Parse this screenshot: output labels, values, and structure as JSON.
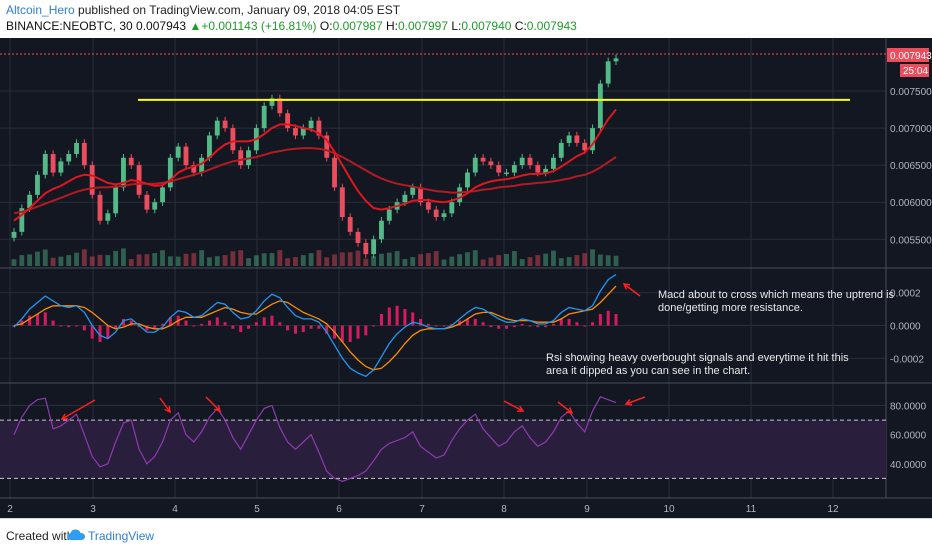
{
  "header": {
    "author": "Altcoin_Hero",
    "published": "published on TradingView.com, January 09, 2018 04:05 EST",
    "symbol": "BINANCE:NEOBTC, 30",
    "last": "0.007943",
    "change": "+0.001143 (+16.81%)",
    "open_label": "O:",
    "open": "0.007987",
    "high_label": "H:",
    "high": "0.007997",
    "low_label": "L:",
    "low": "0.007940",
    "close_label": "C:",
    "close": "0.007943"
  },
  "footer": {
    "created_with": "Created with",
    "brand": "TradingView"
  },
  "price_badge": "0.007943",
  "countdown_badge": "25:04",
  "annotations": {
    "macd_note": [
      "Macd about to cross which means the uptrend is",
      "done/getting more resistance."
    ],
    "rsi_note": [
      "Rsi showing heavy overbought signals and everytime it hit this",
      "area it dipped as you can see in the chart."
    ]
  },
  "colors": {
    "background": "#131722",
    "bull": "#53b987",
    "bear": "#eb4d5c",
    "resistance": "#ffff00",
    "ma_fast": "#e0161f",
    "ma_slow": "#b41a22",
    "macd": "#2196f3",
    "signal": "#ff8c00",
    "hist": "#d81b60",
    "rsi": "#8e3bb0",
    "rsi_band": "#2a1e3d",
    "annotation_arrow": "#ff2020"
  },
  "chart_data": {
    "type": "candlestick",
    "x_ticks": [
      "2",
      "3",
      "4",
      "5",
      "6",
      "7",
      "8",
      "9",
      "10",
      "11",
      "12"
    ],
    "price_axis": {
      "ticks": [
        "0.007500",
        "0.007000",
        "0.006500",
        "0.006000",
        "0.005500"
      ],
      "range": [
        0.00518,
        0.00808
      ]
    },
    "resistance_level": 0.00738,
    "price_close": [
      0.0056,
      0.00592,
      0.0061,
      0.00637,
      0.00665,
      0.0064,
      0.00655,
      0.00665,
      0.0068,
      0.0065,
      0.0061,
      0.00575,
      0.00585,
      0.0062,
      0.0066,
      0.0065,
      0.0061,
      0.0059,
      0.006,
      0.0062,
      0.0066,
      0.00675,
      0.0065,
      0.0064,
      0.0066,
      0.0069,
      0.0071,
      0.007,
      0.0067,
      0.0065,
      0.0067,
      0.007,
      0.0073,
      0.0074,
      0.0072,
      0.007,
      0.0069,
      0.007,
      0.0071,
      0.0069,
      0.0066,
      0.0062,
      0.0058,
      0.0056,
      0.00545,
      0.0053,
      0.0055,
      0.00575,
      0.0059,
      0.006,
      0.0061,
      0.0062,
      0.006,
      0.0059,
      0.0058,
      0.00585,
      0.006,
      0.0062,
      0.0064,
      0.0066,
      0.00655,
      0.0065,
      0.0064,
      0.0064,
      0.0065,
      0.0066,
      0.0065,
      0.0064,
      0.00645,
      0.0066,
      0.0068,
      0.0069,
      0.0068,
      0.0067,
      0.007,
      0.0076,
      0.0079,
      0.00794
    ],
    "ma_fast": [
      0.00575,
      0.00583,
      0.00592,
      0.00602,
      0.00612,
      0.00618,
      0.00622,
      0.00628,
      0.00634,
      0.00637,
      0.00636,
      0.00631,
      0.00626,
      0.00624,
      0.00626,
      0.0063,
      0.00628,
      0.00625,
      0.00622,
      0.00623,
      0.0063,
      0.0064,
      0.00645,
      0.00648,
      0.00652,
      0.0066,
      0.0067,
      0.00678,
      0.00682,
      0.00682,
      0.00682,
      0.00685,
      0.00692,
      0.007,
      0.00705,
      0.00705,
      0.00703,
      0.007,
      0.00698,
      0.00693,
      0.00684,
      0.00668,
      0.0065,
      0.00632,
      0.00615,
      0.00602,
      0.00592,
      0.0059,
      0.00592,
      0.00595,
      0.00598,
      0.00602,
      0.00603,
      0.00603,
      0.00601,
      0.006,
      0.00602,
      0.00606,
      0.00612,
      0.0062,
      0.00625,
      0.00628,
      0.0063,
      0.00631,
      0.00633,
      0.00636,
      0.00638,
      0.00638,
      0.00639,
      0.00642,
      0.00648,
      0.00655,
      0.00662,
      0.00667,
      0.00678,
      0.00695,
      0.00712,
      0.00725
    ],
    "ma_slow": [
      0.00585,
      0.00587,
      0.0059,
      0.00594,
      0.00598,
      0.00602,
      0.00606,
      0.0061,
      0.00614,
      0.00617,
      0.00619,
      0.0062,
      0.0062,
      0.00621,
      0.00622,
      0.00624,
      0.00625,
      0.00625,
      0.00625,
      0.00626,
      0.00628,
      0.00631,
      0.00634,
      0.00637,
      0.0064,
      0.00644,
      0.00648,
      0.00652,
      0.00655,
      0.00657,
      0.00659,
      0.00661,
      0.00664,
      0.00667,
      0.00669,
      0.00671,
      0.00672,
      0.00673,
      0.00673,
      0.00672,
      0.0067,
      0.00666,
      0.00661,
      0.00655,
      0.00649,
      0.00643,
      0.00637,
      0.00632,
      0.00628,
      0.00625,
      0.00623,
      0.00621,
      0.00619,
      0.00617,
      0.00615,
      0.00614,
      0.00613,
      0.00613,
      0.00614,
      0.00615,
      0.00617,
      0.00618,
      0.0062,
      0.00621,
      0.00622,
      0.00624,
      0.00625,
      0.00626,
      0.00627,
      0.00628,
      0.0063,
      0.00632,
      0.00635,
      0.00637,
      0.00641,
      0.00647,
      0.00654,
      0.00661
    ],
    "macd_axis": {
      "ticks": [
        "0.0002",
        "0.0000",
        "-0.0002"
      ],
      "range": [
        -0.00032,
        0.00032
      ]
    },
    "macd": [
      -1e-05,
      4e-05,
      0.0001,
      0.00014,
      0.00018,
      0.00015,
      0.00012,
      0.00011,
      0.00012,
      8e-05,
      0.0,
      -6e-05,
      -8e-05,
      -4e-05,
      3e-05,
      4e-05,
      0.0,
      -4e-05,
      -4e-05,
      -1e-05,
      5e-05,
      9e-05,
      8e-05,
      5e-05,
      6e-05,
      0.0001,
      0.00014,
      0.00013,
      8e-05,
      4e-05,
      5e-05,
      9e-05,
      0.00015,
      0.00019,
      0.00017,
      0.00011,
      6e-05,
      4e-05,
      4e-05,
      2e-05,
      -4e-05,
      -0.00012,
      -0.0002,
      -0.00026,
      -0.00029,
      -0.00031,
      -0.00027,
      -0.00019,
      -0.00011,
      -5e-05,
      -1e-05,
      2e-05,
      1e-05,
      -1e-05,
      -2e-05,
      -2e-05,
      0.0,
      4e-05,
      8e-05,
      0.00011,
      0.0001,
      7e-05,
      4e-05,
      2e-05,
      2e-05,
      4e-05,
      3e-05,
      1e-05,
      1e-05,
      3e-05,
      8e-05,
      0.00011,
      0.0001,
      9e-05,
      0.00012,
      0.00021,
      0.00028,
      0.00031
    ],
    "signal": [
      0.0,
      1e-05,
      4e-05,
      7e-05,
      0.0001,
      0.00012,
      0.00012,
      0.00012,
      0.00012,
      0.00011,
      8e-05,
      4e-05,
      0.0,
      -2e-05,
      -1e-05,
      1e-05,
      1e-05,
      -1e-05,
      -2e-05,
      -2e-05,
      0.0,
      3e-05,
      5e-05,
      5e-05,
      5e-05,
      7e-05,
      9e-05,
      0.00011,
      0.0001,
      8e-05,
      7e-05,
      7e-05,
      0.0001,
      0.00013,
      0.00015,
      0.00014,
      0.00011,
      8e-05,
      6e-05,
      4e-05,
      1e-05,
      -4e-05,
      -0.0001,
      -0.00016,
      -0.00021,
      -0.00025,
      -0.00027,
      -0.00026,
      -0.00022,
      -0.00017,
      -0.00011,
      -6e-05,
      -3e-05,
      -2e-05,
      -2e-05,
      -2e-05,
      -1e-05,
      1e-05,
      4e-05,
      7e-05,
      8e-05,
      8e-05,
      6e-05,
      4e-05,
      3e-05,
      3e-05,
      3e-05,
      2e-05,
      2e-05,
      2e-05,
      4e-05,
      7e-05,
      8e-05,
      9e-05,
      0.0001,
      0.00014,
      0.00019,
      0.00024
    ],
    "rsi_axis": {
      "ticks": [
        "80.0000",
        "60.0000",
        "40.0000"
      ],
      "range": [
        20,
        92
      ],
      "overbought": 70,
      "oversold": 30
    },
    "rsi": [
      60,
      72,
      80,
      84,
      85,
      64,
      66,
      70,
      74,
      60,
      45,
      38,
      40,
      55,
      68,
      70,
      50,
      40,
      45,
      55,
      70,
      75,
      60,
      55,
      62,
      72,
      78,
      70,
      58,
      50,
      60,
      70,
      78,
      80,
      65,
      55,
      50,
      55,
      60,
      48,
      35,
      30,
      28,
      30,
      32,
      35,
      42,
      50,
      54,
      56,
      58,
      62,
      52,
      48,
      44,
      46,
      56,
      64,
      70,
      74,
      64,
      58,
      52,
      55,
      62,
      66,
      58,
      52,
      55,
      62,
      72,
      76,
      68,
      62,
      76,
      86,
      84,
      82
    ]
  }
}
